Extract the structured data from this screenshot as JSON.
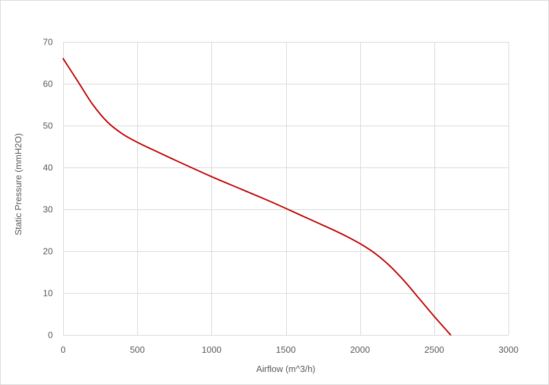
{
  "chart_data": {
    "type": "line",
    "title": "",
    "xlabel": "Airflow (m^3/h)",
    "ylabel": "Static Pressure (mmH2O)",
    "xlim": [
      0,
      3000
    ],
    "ylim": [
      0,
      70
    ],
    "xticks": [
      0,
      500,
      1000,
      1500,
      2000,
      2500,
      3000
    ],
    "yticks": [
      0,
      10,
      20,
      30,
      40,
      50,
      60,
      70
    ],
    "grid": true,
    "legend": "none",
    "series": [
      {
        "color": "#c00000",
        "x": [
          0,
          100,
          200,
          300,
          400,
          500,
          600,
          800,
          1000,
          1200,
          1400,
          1600,
          1800,
          1900,
          2000,
          2100,
          2200,
          2300,
          2400,
          2500,
          2610
        ],
        "y": [
          66,
          60.5,
          55,
          50.8,
          48,
          46,
          44.3,
          41,
          37.8,
          34.8,
          31.8,
          28.6,
          25.4,
          23.7,
          21.8,
          19.5,
          16.5,
          12.8,
          8.6,
          4.4,
          0
        ]
      }
    ]
  }
}
